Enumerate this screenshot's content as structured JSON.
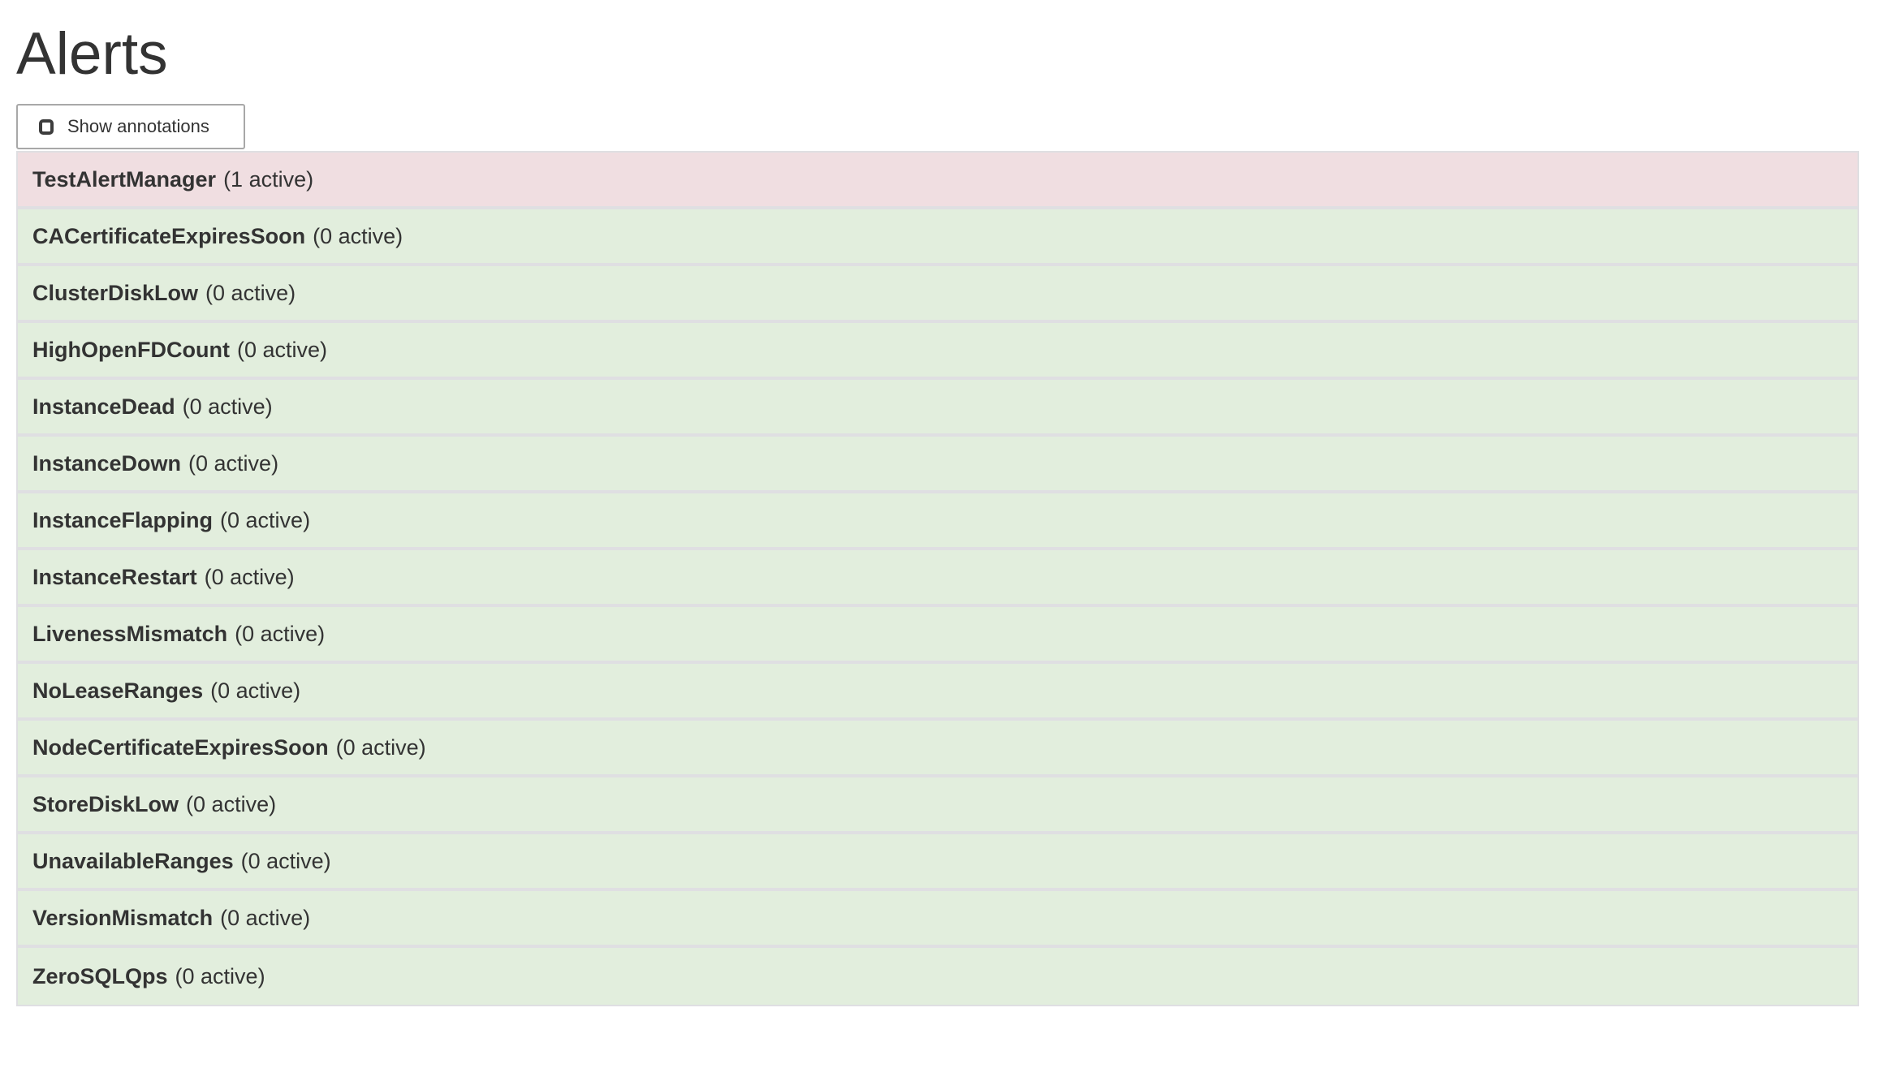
{
  "page": {
    "title": "Alerts"
  },
  "controls": {
    "show_annotations": {
      "label": "Show annotations",
      "checked": false
    }
  },
  "alerts": {
    "items": [
      {
        "name": "TestAlertManager",
        "active": 1,
        "label": "(1 active)"
      },
      {
        "name": "CACertificateExpiresSoon",
        "active": 0,
        "label": "(0 active)"
      },
      {
        "name": "ClusterDiskLow",
        "active": 0,
        "label": "(0 active)"
      },
      {
        "name": "HighOpenFDCount",
        "active": 0,
        "label": "(0 active)"
      },
      {
        "name": "InstanceDead",
        "active": 0,
        "label": "(0 active)"
      },
      {
        "name": "InstanceDown",
        "active": 0,
        "label": "(0 active)"
      },
      {
        "name": "InstanceFlapping",
        "active": 0,
        "label": "(0 active)"
      },
      {
        "name": "InstanceRestart",
        "active": 0,
        "label": "(0 active)"
      },
      {
        "name": "LivenessMismatch",
        "active": 0,
        "label": "(0 active)"
      },
      {
        "name": "NoLeaseRanges",
        "active": 0,
        "label": "(0 active)"
      },
      {
        "name": "NodeCertificateExpiresSoon",
        "active": 0,
        "label": "(0 active)"
      },
      {
        "name": "StoreDiskLow",
        "active": 0,
        "label": "(0 active)"
      },
      {
        "name": "UnavailableRanges",
        "active": 0,
        "label": "(0 active)"
      },
      {
        "name": "VersionMismatch",
        "active": 0,
        "label": "(0 active)"
      },
      {
        "name": "ZeroSQLQps",
        "active": 0,
        "label": "(0 active)"
      }
    ]
  },
  "colors": {
    "firing_bg": "#f0dee1",
    "inactive_bg": "#e2eedd",
    "row_border": "#dfdfe2",
    "text": "#333333",
    "button_border": "#a8a8a8"
  }
}
